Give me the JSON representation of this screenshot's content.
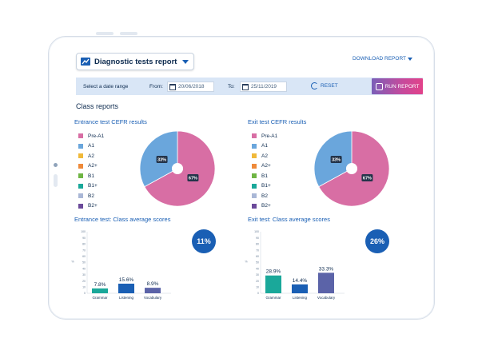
{
  "toolbar": {
    "report_label": "Diagnostic tests report",
    "download_label": "DOWNLOAD REPORT"
  },
  "datebar": {
    "select_label": "Select a date range",
    "from_label": "From:",
    "from_value": "20/06/2018",
    "to_label": "To:",
    "to_value": "25/11/2019",
    "reset_label": "RESET",
    "run_label": "RUN REPORT"
  },
  "section_title": "Class reports",
  "legend": [
    {
      "label": "Pre-A1",
      "color": "#d86ea4"
    },
    {
      "label": "A1",
      "color": "#6aa6dc"
    },
    {
      "label": "A2",
      "color": "#f0b93a"
    },
    {
      "label": "A2+",
      "color": "#ee8a3a"
    },
    {
      "label": "B1",
      "color": "#6fb544"
    },
    {
      "label": "B1+",
      "color": "#1aa89a"
    },
    {
      "label": "B2",
      "color": "#a9b7d6"
    },
    {
      "label": "B2+",
      "color": "#6b4a9a"
    }
  ],
  "entrance": {
    "cefr_title": "Entrance test CEFR results",
    "avg_title": "Entrance test: Class average scores",
    "overall": "11%"
  },
  "exit": {
    "cefr_title": "Exit test CEFR results",
    "avg_title": "Exit test: Class average scores",
    "overall": "26%"
  },
  "chart_data": [
    {
      "type": "pie",
      "categories": [
        "Pre-A1",
        "A1"
      ],
      "values": [
        67,
        33
      ],
      "colors": [
        "#d86ea4",
        "#6aa6dc"
      ],
      "value_labels": [
        "67%",
        "33%"
      ]
    },
    {
      "type": "pie",
      "categories": [
        "Pre-A1",
        "A1"
      ],
      "values": [
        67,
        33
      ],
      "colors": [
        "#d86ea4",
        "#6aa6dc"
      ],
      "value_labels": [
        "67%",
        "33%"
      ]
    },
    {
      "type": "bar",
      "categories": [
        "Grammar",
        "Listening",
        "Vocabulary"
      ],
      "values": [
        7.8,
        15.6,
        8.9
      ],
      "value_labels": [
        "7.8%",
        "15.6%",
        "8.9%"
      ],
      "colors": [
        "#1aa89a",
        "#1a5fb4",
        "#5b63a8"
      ],
      "ylim": [
        0,
        100
      ],
      "ylabel": "%",
      "yticks": [
        "100",
        "90",
        "80",
        "70",
        "60",
        "50",
        "40",
        "30",
        "20",
        "10",
        "0"
      ]
    },
    {
      "type": "bar",
      "categories": [
        "Grammar",
        "Listening",
        "Vocabulary"
      ],
      "values": [
        28.9,
        14.4,
        33.3
      ],
      "value_labels": [
        "28.9%",
        "14.4%",
        "33.3%"
      ],
      "colors": [
        "#1aa89a",
        "#1a5fb4",
        "#5b63a8"
      ],
      "ylim": [
        0,
        100
      ],
      "ylabel": "%",
      "yticks": [
        "100",
        "90",
        "80",
        "70",
        "60",
        "50",
        "40",
        "30",
        "20",
        "10",
        "0"
      ]
    }
  ]
}
